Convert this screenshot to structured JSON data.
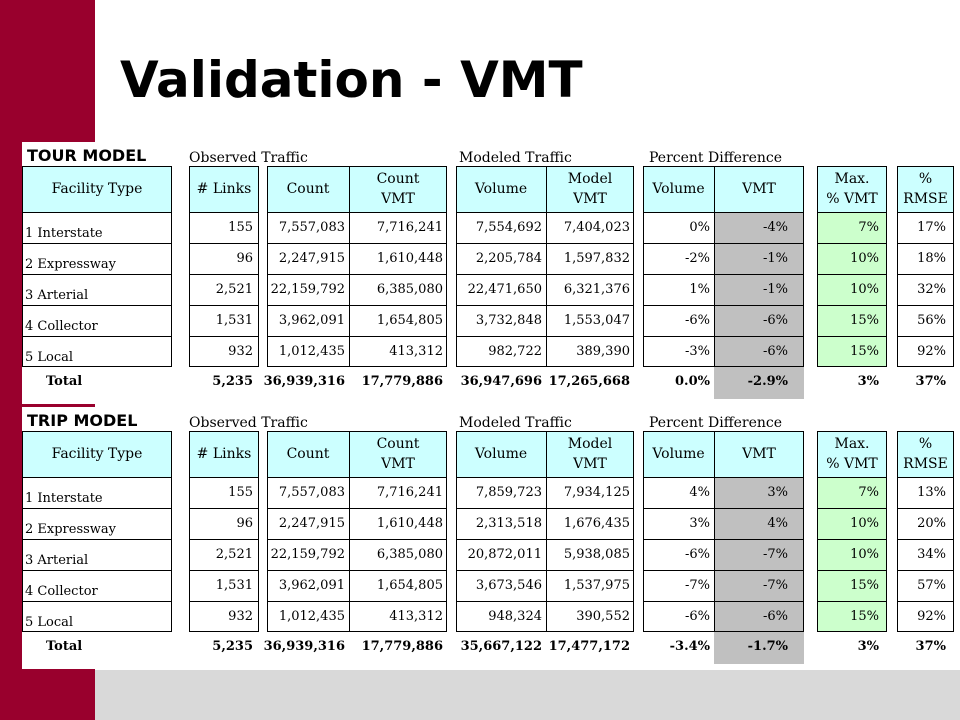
{
  "title": "Validation - VMT",
  "headers": {
    "facility": "Facility Type",
    "links": "# Links",
    "count": "Count",
    "count_vmt": [
      "Count",
      "VMT"
    ],
    "volume": "Volume",
    "model_vmt": [
      "Model",
      "VMT"
    ],
    "pct_volume": "Volume",
    "pct_vmt": "VMT",
    "max_vmt": [
      "Max.",
      "% VMT"
    ],
    "rmse": [
      "%",
      "RMSE"
    ]
  },
  "groups": {
    "observed": "Observed Traffic",
    "modeled": "Modeled Traffic",
    "percent": "Percent Difference"
  },
  "total_label": "Total",
  "tour": {
    "label": "TOUR MODEL",
    "rows": [
      {
        "facility": "1  Interstate",
        "links": "155",
        "count": "7,557,083",
        "count_vmt": "7,716,241",
        "volume": "7,554,692",
        "model_vmt": "7,404,023",
        "pct_volume": "0%",
        "pct_vmt": "-4%",
        "max_vmt": "7%",
        "rmse": "17%"
      },
      {
        "facility": "2  Expressway",
        "links": "96",
        "count": "2,247,915",
        "count_vmt": "1,610,448",
        "volume": "2,205,784",
        "model_vmt": "1,597,832",
        "pct_volume": "-2%",
        "pct_vmt": "-1%",
        "max_vmt": "10%",
        "rmse": "18%"
      },
      {
        "facility": "3  Arterial",
        "links": "2,521",
        "count": "22,159,792",
        "count_vmt": "6,385,080",
        "volume": "22,471,650",
        "model_vmt": "6,321,376",
        "pct_volume": "1%",
        "pct_vmt": "-1%",
        "max_vmt": "10%",
        "rmse": "32%"
      },
      {
        "facility": "4   Collector",
        "links": "1,531",
        "count": "3,962,091",
        "count_vmt": "1,654,805",
        "volume": "3,732,848",
        "model_vmt": "1,553,047",
        "pct_volume": "-6%",
        "pct_vmt": "-6%",
        "max_vmt": "15%",
        "rmse": "56%"
      },
      {
        "facility": "5   Local",
        "links": "932",
        "count": "1,012,435",
        "count_vmt": "413,312",
        "volume": "982,722",
        "model_vmt": "389,390",
        "pct_volume": "-3%",
        "pct_vmt": "-6%",
        "max_vmt": "15%",
        "rmse": "92%"
      }
    ],
    "total": {
      "links": "5,235",
      "count": "36,939,316",
      "count_vmt": "17,779,886",
      "volume": "36,947,696",
      "model_vmt": "17,265,668",
      "pct_volume": "0.0%",
      "pct_vmt": "-2.9%",
      "max_vmt": "3%",
      "rmse": "37%"
    }
  },
  "trip": {
    "label": "TRIP MODEL",
    "rows": [
      {
        "facility": "1  Interstate",
        "links": "155",
        "count": "7,557,083",
        "count_vmt": "7,716,241",
        "volume": "7,859,723",
        "model_vmt": "7,934,125",
        "pct_volume": "4%",
        "pct_vmt": "3%",
        "max_vmt": "7%",
        "rmse": "13%"
      },
      {
        "facility": "2  Expressway",
        "links": "96",
        "count": "2,247,915",
        "count_vmt": "1,610,448",
        "volume": "2,313,518",
        "model_vmt": "1,676,435",
        "pct_volume": "3%",
        "pct_vmt": "4%",
        "max_vmt": "10%",
        "rmse": "20%"
      },
      {
        "facility": "3  Arterial",
        "links": "2,521",
        "count": "22,159,792",
        "count_vmt": "6,385,080",
        "volume": "20,872,011",
        "model_vmt": "5,938,085",
        "pct_volume": "-6%",
        "pct_vmt": "-7%",
        "max_vmt": "10%",
        "rmse": "34%"
      },
      {
        "facility": "4   Collector",
        "links": "1,531",
        "count": "3,962,091",
        "count_vmt": "1,654,805",
        "volume": "3,673,546",
        "model_vmt": "1,537,975",
        "pct_volume": "-7%",
        "pct_vmt": "-7%",
        "max_vmt": "15%",
        "rmse": "57%"
      },
      {
        "facility": "5   Local",
        "links": "932",
        "count": "1,012,435",
        "count_vmt": "413,312",
        "volume": "948,324",
        "model_vmt": "390,552",
        "pct_volume": "-6%",
        "pct_vmt": "-6%",
        "max_vmt": "15%",
        "rmse": "92%"
      }
    ],
    "total": {
      "links": "5,235",
      "count": "36,939,316",
      "count_vmt": "17,779,886",
      "volume": "35,667,122",
      "model_vmt": "17,477,172",
      "pct_volume": "-3.4%",
      "pct_vmt": "-1.7%",
      "max_vmt": "3%",
      "rmse": "37%"
    }
  },
  "colors": {
    "accent_bar": "#99002d",
    "header_fill": "#ccffff",
    "vmt_fill": "#c0c0c0",
    "max_fill": "#ccffcc",
    "bottom_band": "#d9d9d9"
  }
}
